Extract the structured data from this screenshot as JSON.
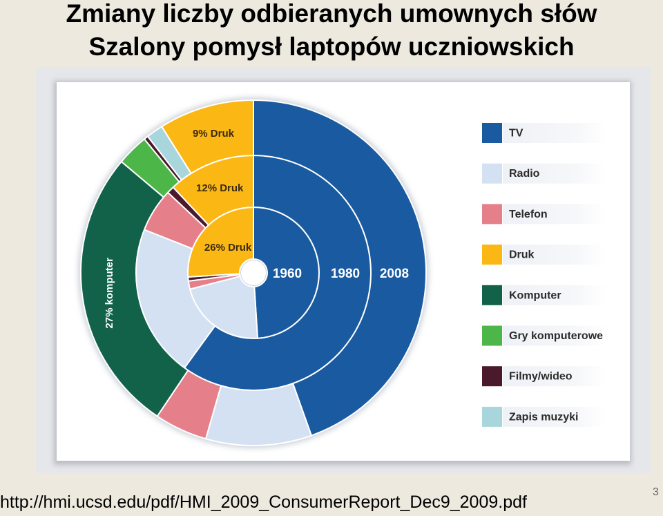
{
  "slide": {
    "title_line1": "Zmiany liczby odbieranych umownych słów",
    "title_line2": "Szalony pomysł laptopów uczniowskich",
    "source_url": "http://hmi.ucsd.edu/pdf/HMI_2009_ConsumerReport_Dec9_2009.pdf",
    "page_number": "3"
  },
  "chart_data": {
    "type": "pie",
    "subtype": "nested-donut",
    "start_angle_deg": 0,
    "direction": "clockwise",
    "legend_position": "right",
    "categories": [
      {
        "name": "TV",
        "color": "#1a5aa0"
      },
      {
        "name": "Radio",
        "color": "#d3e1f3"
      },
      {
        "name": "Telefon",
        "color": "#e57f8a"
      },
      {
        "name": "Druk",
        "color": "#fbb713"
      },
      {
        "name": "Komputer",
        "color": "#12624a"
      },
      {
        "name": "Gry komputerowe",
        "color": "#4cb748"
      },
      {
        "name": "Filmy/wideo",
        "color": "#4a1a2c"
      },
      {
        "name": "Zapis muzyki",
        "color": "#a8d6dc"
      }
    ],
    "rings": [
      {
        "year": "1960",
        "segments": [
          {
            "category": "TV",
            "value": 49
          },
          {
            "category": "Radio",
            "value": 22
          },
          {
            "category": "Telefon",
            "value": 2
          },
          {
            "category": "Filmy/wideo",
            "value": 1
          },
          {
            "category": "Druk",
            "value": 26
          }
        ],
        "labels": [
          {
            "category": "Druk",
            "text": "26% Druk"
          }
        ]
      },
      {
        "year": "1980",
        "segments": [
          {
            "category": "TV",
            "value": 60
          },
          {
            "category": "Radio",
            "value": 21
          },
          {
            "category": "Telefon",
            "value": 6
          },
          {
            "category": "Filmy/wideo",
            "value": 1
          },
          {
            "category": "Druk",
            "value": 12
          }
        ],
        "labels": [
          {
            "category": "Druk",
            "text": "12% Druk"
          }
        ]
      },
      {
        "year": "2008",
        "segments": [
          {
            "category": "TV",
            "value": 45
          },
          {
            "category": "Radio",
            "value": 10
          },
          {
            "category": "Telefon",
            "value": 5
          },
          {
            "category": "Komputer",
            "value": 27
          },
          {
            "category": "Gry komputerowe",
            "value": 3
          },
          {
            "category": "Filmy/wideo",
            "value": 0.4
          },
          {
            "category": "Zapis muzyki",
            "value": 1.6
          },
          {
            "category": "Druk",
            "value": 9
          }
        ],
        "labels": [
          {
            "category": "Druk",
            "text": "9% Druk"
          },
          {
            "category": "Komputer",
            "text": "27% komputer"
          }
        ]
      }
    ]
  }
}
